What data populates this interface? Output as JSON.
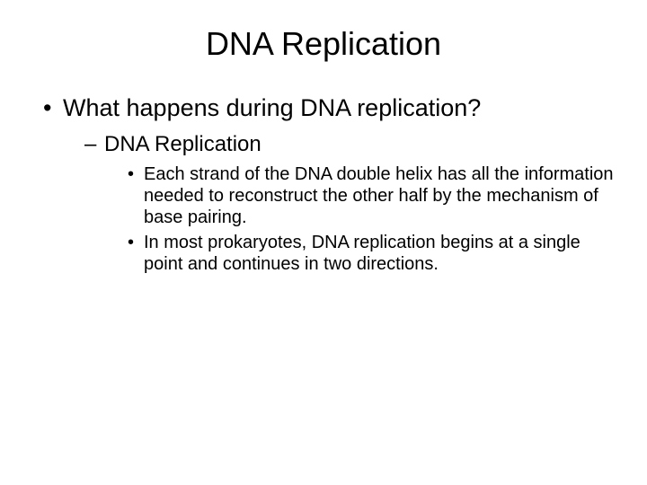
{
  "slide": {
    "title": "DNA Replication",
    "background_color": "#ffffff",
    "text_color": "#000000",
    "title_fontsize": 36,
    "level1_fontsize": 27,
    "level2_fontsize": 24,
    "level3_fontsize": 20,
    "font_family": "Arial",
    "bullets": {
      "level1": [
        {
          "text": "What happens during DNA replication?",
          "children": [
            {
              "text": "DNA Replication",
              "children": [
                {
                  "text": "Each strand of the DNA double helix has all the information needed to reconstruct the other half by the mechanism of base pairing."
                },
                {
                  "text": "In most prokaryotes, DNA replication begins at a single point and continues in two directions."
                }
              ]
            }
          ]
        }
      ]
    }
  }
}
